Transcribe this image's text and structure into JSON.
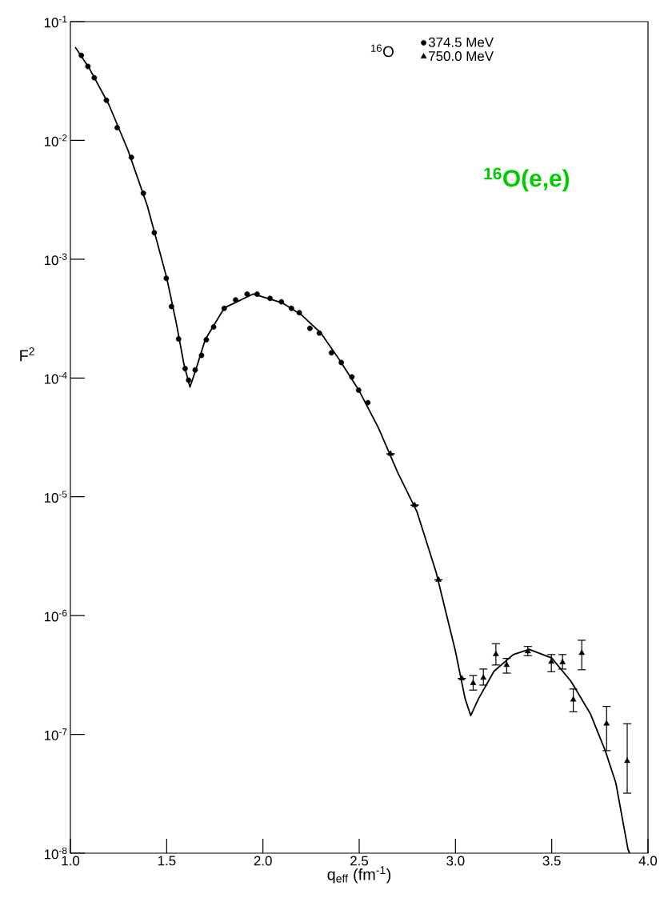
{
  "chart_data": {
    "type": "scatter",
    "xlabel": "q$_{eff}$ (fm$^{-1}$)",
    "ylabel": "F$^{2}$",
    "log": "y",
    "annotations": [
      "$^{16}$O",
      "**$^{16}$O(e,e)**"
    ],
    "xlim": [
      1.0,
      4.0
    ],
    "xticks": [
      {
        "value": 1.0,
        "label": "1.0"
      },
      {
        "value": 1.5,
        "label": "1.5"
      },
      {
        "value": 2.0,
        "label": "2.0"
      },
      {
        "value": 2.5,
        "label": "2.5"
      },
      {
        "value": 3.0,
        "label": "3.0"
      },
      {
        "value": 3.5,
        "label": "3.5"
      },
      {
        "value": 4.0,
        "label": "4.0"
      }
    ],
    "ylim": [
      1e-08,
      0.1
    ],
    "yticks": [
      {
        "value": 1e-08,
        "label": "10$^{-8}$"
      },
      {
        "value": 1e-07,
        "label": "10$^{-7}$"
      },
      {
        "value": 1e-06,
        "label": "10$^{-6}$"
      },
      {
        "value": 1e-05,
        "label": "10$^{-5}$"
      },
      {
        "value": 0.0001,
        "label": "10$^{-4}$"
      },
      {
        "value": 0.001,
        "label": "10$^{-3}$"
      },
      {
        "value": 0.01,
        "label": "10$^{-2}$"
      },
      {
        "value": 0.1,
        "label": "10$^{-1}$"
      }
    ],
    "grid": false,
    "legend": "top right",
    "series": [
      {
        "type": "line",
        "color": "#000000",
        "line_style": "solid",
        "marker": "none",
        "x": [
          1.025,
          1.1,
          1.2,
          1.3,
          1.4,
          1.5,
          1.55,
          1.59,
          1.621,
          1.65,
          1.7,
          1.8,
          1.95,
          2.1,
          2.2,
          2.3,
          2.4,
          2.5,
          2.6,
          2.7,
          2.8,
          2.9,
          3.0,
          3.05,
          3.079,
          3.12,
          3.2,
          3.3,
          3.383,
          3.5,
          3.6,
          3.7,
          3.778,
          3.833,
          3.896,
          3.905
        ],
        "values": [
          0.061,
          0.04,
          0.02,
          0.0082,
          0.0028,
          0.0007,
          0.00029,
          0.00013,
          8.4e-05,
          0.000115,
          0.00021,
          0.00039,
          0.00051,
          0.00043,
          0.00034,
          0.00024,
          0.00014,
          7.8e-05,
          3.8e-05,
          1.6e-05,
          7.5e-06,
          2.3e-06,
          5e-07,
          2e-07,
          1.44e-07,
          2e-07,
          3.4e-07,
          4.7e-07,
          5.2e-07,
          4.4e-07,
          2.8e-07,
          1.5e-07,
          7.3e-08,
          3.9e-08,
          1.08e-08,
          1e-08
        ]
      },
      {
        "name": "374.5 MeV",
        "color": "#000000",
        "marker": "circle",
        "x": [
          1.057,
          1.091,
          1.124,
          1.187,
          1.243,
          1.317,
          1.379,
          1.436,
          1.498,
          1.525,
          1.562,
          1.596,
          1.614,
          1.648,
          1.681,
          1.706,
          1.744,
          1.799,
          1.858,
          1.918,
          1.97,
          2.037,
          2.096,
          2.148,
          2.189,
          2.244,
          2.293,
          2.356,
          2.407,
          2.462,
          2.497,
          2.545
        ],
        "values": [
          0.052,
          0.042,
          0.0337,
          0.0218,
          0.0128,
          0.0072,
          0.00359,
          0.00167,
          0.00069,
          0.0004,
          0.000213,
          0.00012,
          9.6e-05,
          0.000117,
          0.000155,
          0.00021,
          0.000269,
          0.000386,
          0.000455,
          0.000508,
          0.000508,
          0.000468,
          0.000438,
          0.000386,
          0.000355,
          0.000262,
          0.000239,
          0.000163,
          0.000135,
          0.000102,
          7.9e-05,
          6.2e-05
        ]
      },
      {
        "name": "750.0 MeV",
        "color": "#000000",
        "marker": "triangle",
        "x": [
          2.663,
          2.788,
          2.912,
          3.033,
          3.092,
          3.145,
          3.21,
          3.266,
          3.376,
          3.498,
          3.556,
          3.612,
          3.656,
          3.785,
          3.892
        ],
        "values": [
          2.3e-05,
          8.5e-06,
          2e-06,
          2.96e-07,
          2.7e-07,
          2.99e-07,
          4.73e-07,
          3.84e-07,
          5e-07,
          4.08e-07,
          4.04e-07,
          1.96e-07,
          4.84e-07,
          1.23e-07,
          5.97e-08
        ],
        "errors": [
          null,
          null,
          null,
          null,
          [
            2.36e-07,
            3.13e-07
          ],
          [
            2.6e-07,
            3.55e-07
          ],
          [
            3.84e-07,
            5.8e-07
          ],
          [
            3.28e-07,
            4.36e-07
          ],
          [
            4.6e-07,
            5.5e-07
          ],
          [
            3.37e-07,
            4.7e-07
          ],
          [
            3.55e-07,
            4.7e-07
          ],
          [
            1.55e-07,
            2.41e-07
          ],
          [
            3.5e-07,
            6.2e-07
          ],
          [
            7.3e-08,
            1.72e-07
          ],
          [
            3.2e-08,
            1.23e-07
          ]
        ]
      }
    ]
  }
}
